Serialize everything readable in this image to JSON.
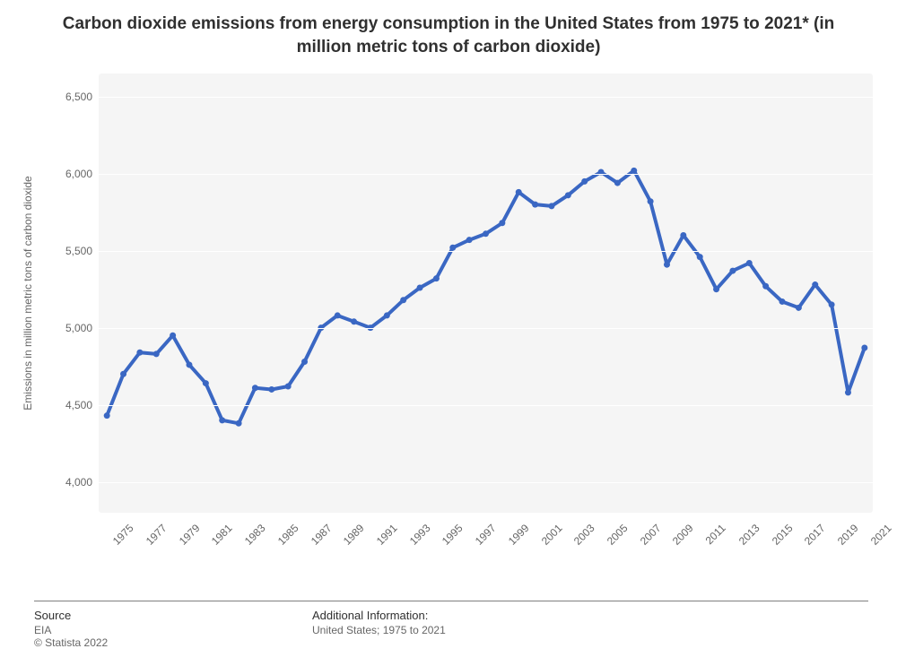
{
  "title": "Carbon dioxide emissions from energy consumption in the United States from 1975 to 2021* (in million metric tons of carbon dioxide)",
  "title_fontsize": 19,
  "chart": {
    "type": "line",
    "plot_background": "#f5f5f5",
    "grid_color": "#ffffff",
    "line_color": "#3a67c3",
    "line_width": 4,
    "marker_color": "#3a67c3",
    "marker_radius": 3.5,
    "y_axis_title": "Emissions in million metric tons of carbon dioxide",
    "y_axis_title_fontsize": 12,
    "tick_fontsize": 12,
    "tick_color": "#666666",
    "ylim": [
      3800,
      6650
    ],
    "yticks": [
      4000,
      4500,
      5000,
      5500,
      6000,
      6500
    ],
    "ytick_labels": [
      "4,000",
      "4,500",
      "5,000",
      "5,500",
      "6,000",
      "6,500"
    ],
    "xtick_every": 2,
    "x_label_rotation": -45,
    "years": [
      1975,
      1976,
      1977,
      1978,
      1979,
      1980,
      1981,
      1982,
      1983,
      1984,
      1985,
      1986,
      1987,
      1988,
      1989,
      1990,
      1991,
      1992,
      1993,
      1994,
      1995,
      1996,
      1997,
      1998,
      1999,
      2000,
      2001,
      2002,
      2003,
      2004,
      2005,
      2006,
      2007,
      2008,
      2009,
      2010,
      2011,
      2012,
      2013,
      2014,
      2015,
      2016,
      2017,
      2018,
      2019,
      2020,
      2021
    ],
    "values": [
      4430,
      4700,
      4840,
      4830,
      4950,
      4760,
      4640,
      4400,
      4380,
      4610,
      4600,
      4620,
      4780,
      5000,
      5080,
      5040,
      5000,
      5080,
      5180,
      5260,
      5320,
      5520,
      5570,
      5610,
      5680,
      5880,
      5800,
      5790,
      5860,
      5950,
      6010,
      5940,
      6020,
      5820,
      5410,
      5600,
      5460,
      5250,
      5370,
      5420,
      5270,
      5170,
      5130,
      5280,
      5150,
      4580,
      4870
    ]
  },
  "footer": {
    "source_header": "Source",
    "source_text": "EIA",
    "copyright": "© Statista 2022",
    "addl_header": "Additional Information:",
    "addl_text": "United States; 1975 to 2021"
  }
}
